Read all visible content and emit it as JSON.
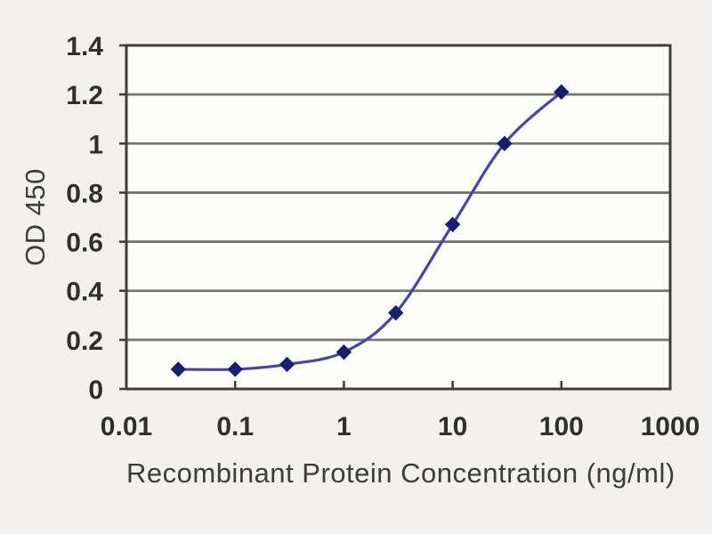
{
  "chart_data": {
    "type": "line",
    "title": "",
    "xlabel": "Recombinant Protein Concentration (ng/ml)",
    "ylabel": "OD 450",
    "x_scale": "log",
    "xlim": [
      0.01,
      1000
    ],
    "ylim": [
      0,
      1.4
    ],
    "x_ticks": [
      0.01,
      0.1,
      1,
      10,
      100,
      1000
    ],
    "x_tick_labels": [
      "0.01",
      "0.1",
      "1",
      "10",
      "100",
      "1000"
    ],
    "y_ticks": [
      0,
      0.2,
      0.4,
      0.6,
      0.8,
      1,
      1.2,
      1.4
    ],
    "y_tick_labels": [
      "0",
      "0.2",
      "0.4",
      "0.6",
      "0.8",
      "1",
      "1.2",
      "1.4"
    ],
    "grid": "horizontal",
    "legend": "none",
    "marker_style": "diamond",
    "series": [
      {
        "name": "OD 450",
        "x": [
          0.03,
          0.1,
          0.3,
          1,
          3,
          10,
          30,
          100
        ],
        "y": [
          0.08,
          0.08,
          0.1,
          0.15,
          0.31,
          0.67,
          1.0,
          1.21
        ]
      }
    ],
    "colors": {
      "page_bg": "#f2f1ee",
      "plot_bg": "#fdfdfc",
      "grid": "#757575",
      "axis_border": "#3f3f3f",
      "line": "#47479c",
      "marker": "#1d1d6e",
      "tick_text": "#2f2f2f",
      "label_text": "#3c3c3c"
    }
  }
}
